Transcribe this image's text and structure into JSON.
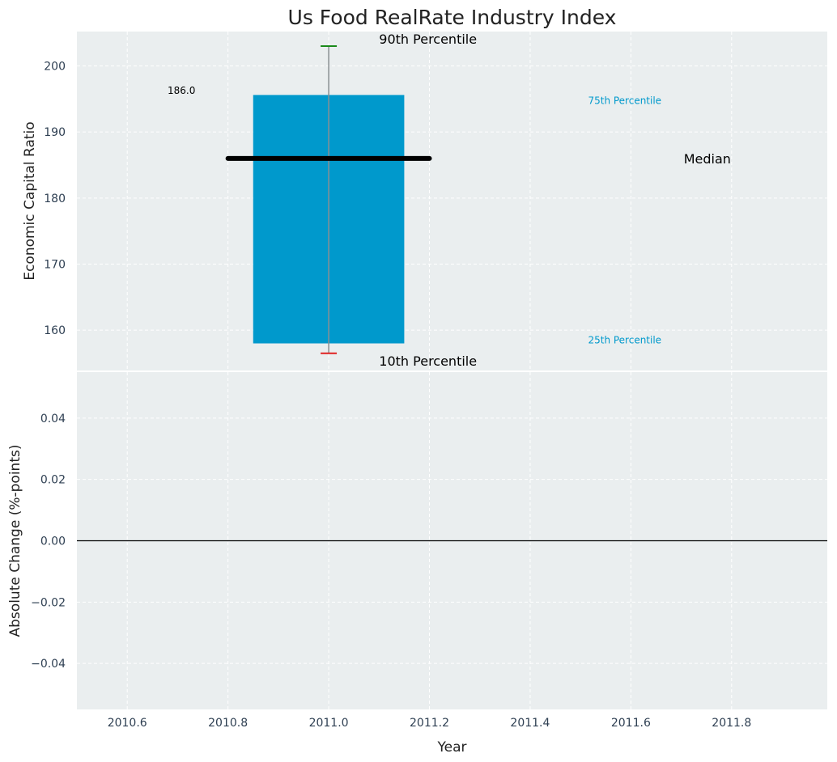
{
  "chart_data": {
    "title": "Us Food RealRate Industry Index",
    "xlabel": "Year",
    "colors": {
      "background": "#eaeeef",
      "box": "#0099cc",
      "median": "#000000",
      "whisker": "#8a8f93",
      "p90_cap": "#1a8a1a",
      "p10_cap": "#e02020",
      "grid": "#ffffff",
      "zero_line": "#000000"
    },
    "xlim": [
      2010.5,
      2011.99
    ],
    "xticks": [
      2010.6,
      2010.8,
      2011.0,
      2011.2,
      2011.4,
      2011.6,
      2011.8
    ],
    "xtick_labels": [
      "2010.6",
      "2010.8",
      "2011.0",
      "2011.2",
      "2011.4",
      "2011.6",
      "2011.8"
    ],
    "grid": true,
    "panels": [
      {
        "type": "box",
        "ylabel": "Economic Capital Ratio",
        "ylim": [
          153.9,
          205.2
        ],
        "yticks": [
          160,
          170,
          180,
          190,
          200
        ],
        "ytick_labels": [
          "160",
          "170",
          "180",
          "190",
          "200"
        ],
        "x": 2011.0,
        "box_width": 0.3,
        "median_width": 0.4,
        "p10": 156.5,
        "p25": 158.0,
        "median": 186.0,
        "p75": 195.6,
        "p90": 203.0,
        "median_label": "186.0",
        "annotations": {
          "p90": "90th Percentile",
          "p75": "75th Percentile",
          "median": "Median",
          "p25": "25th Percentile",
          "p10": "10th Percentile"
        }
      },
      {
        "type": "line",
        "ylabel": "Absolute Change (%-points)",
        "ylim": [
          -0.055,
          0.055
        ],
        "yticks": [
          -0.04,
          -0.02,
          0.0,
          0.02,
          0.04
        ],
        "ytick_labels": [
          "−0.04",
          "−0.02",
          "0.00",
          "0.02",
          "0.04"
        ],
        "zero_line": 0.0,
        "series": []
      }
    ]
  }
}
